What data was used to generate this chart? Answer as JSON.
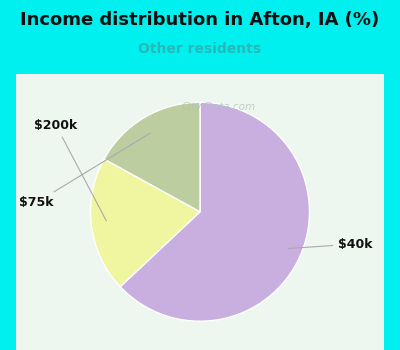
{
  "title": "Income distribution in Afton, IA (%)",
  "subtitle": "Other residents",
  "title_color": "#111111",
  "subtitle_color": "#29b8b8",
  "background_cyan": "#00f0f0",
  "chart_bg_color": "#e8f5ee",
  "slices": [
    {
      "label": "$40k",
      "value": 63,
      "color": "#c9aee0"
    },
    {
      "label": "$200k",
      "value": 20,
      "color": "#f0f5a0"
    },
    {
      "label": "$75k",
      "value": 17,
      "color": "#bccda0"
    }
  ],
  "watermark": "City-Data.com",
  "watermark_color": "#b0c0c0",
  "label_style": {
    "fontsize": 9,
    "fontweight": "bold",
    "color": "#111111"
  },
  "arrow_color": "#aaaaaa",
  "figsize": [
    4.0,
    3.5
  ],
  "dpi": 100,
  "title_fontsize": 13,
  "subtitle_fontsize": 10
}
